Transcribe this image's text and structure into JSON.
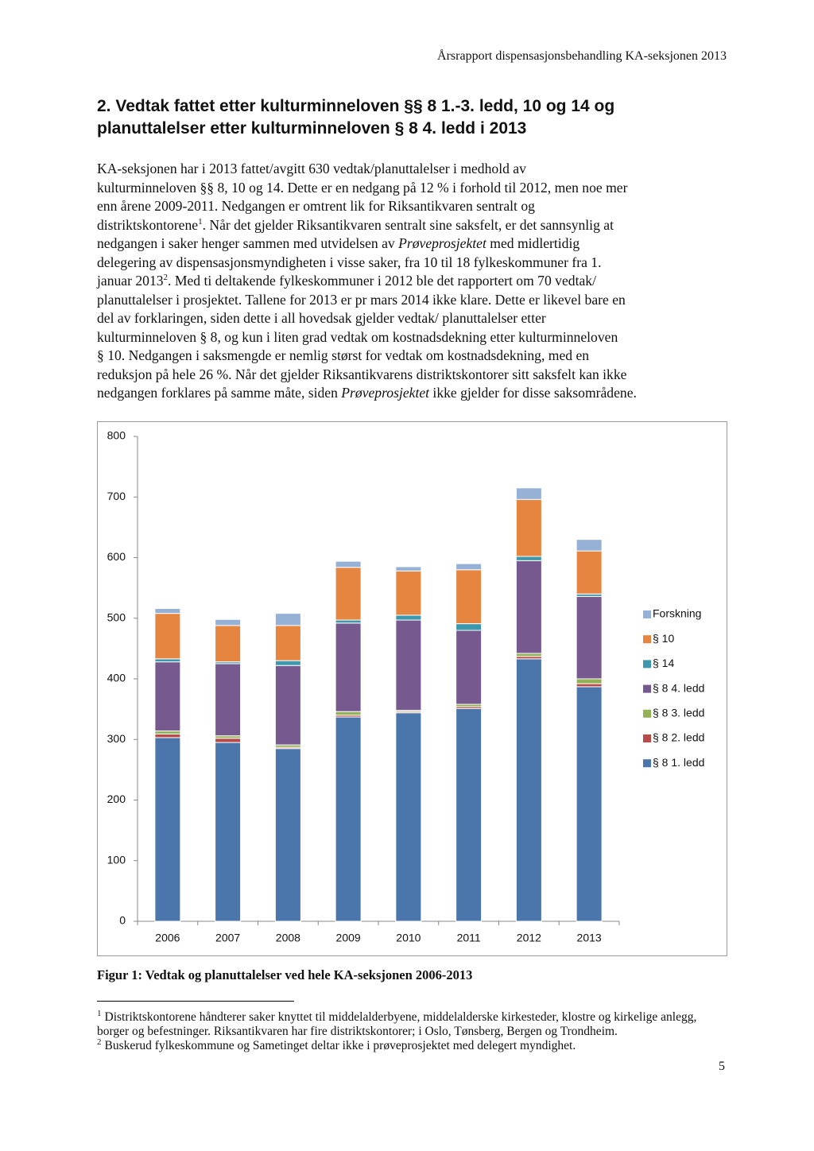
{
  "header": "Årsrapport dispensasjonsbehandling KA-seksjonen 2013",
  "heading": [
    "2. Vedtak fattet etter kulturminneloven §§ 8 1.-3. ledd, 10 og 14 og",
    "planuttalelser etter kulturminneloven § 8 4. ledd i 2013"
  ],
  "body": {
    "lines": [
      [
        {
          "text": "KA-seksjonen har i 2013 fattet/avgitt 630 vedtak/planuttalelser i medhold av"
        }
      ],
      [
        {
          "text": "kulturminneloven §§ 8, 10 og 14. Dette er en nedgang på 12 % i forhold til 2012, men noe mer"
        }
      ],
      [
        {
          "text": "enn årene 2009-2011. Nedgangen er omtrent lik for Riksantikvaren sentralt og"
        }
      ],
      [
        {
          "text": "distriktskontorene"
        },
        {
          "text": "1",
          "style": "sup"
        },
        {
          "text": ". Når det gjelder Riksantikvaren sentralt sine saksfelt, er det sannsynlig at"
        }
      ],
      [
        {
          "text": "nedgangen i saker henger sammen med utvidelsen av "
        },
        {
          "text": "Prøveprosjektet",
          "style": "italic"
        },
        {
          "text": " med midlertidig"
        }
      ],
      [
        {
          "text": "delegering av dispensasjonsmyndigheten i visse saker, fra 10 til 18 fylkeskommuner fra 1."
        }
      ],
      [
        {
          "text": "januar 2013"
        },
        {
          "text": "2",
          "style": "sup"
        },
        {
          "text": ". Med ti deltakende fylkeskommuner i 2012 ble det rapportert om 70 vedtak/"
        }
      ],
      [
        {
          "text": "planuttalelser i prosjektet. Tallene for 2013 er pr mars 2014 ikke klare. Dette er likevel bare en"
        }
      ],
      [
        {
          "text": "del av forklaringen, siden dette i all hovedsak gjelder vedtak/ planuttalelser etter"
        }
      ],
      [
        {
          "text": "kulturminneloven § 8, og kun i liten grad vedtak om kostnadsdekning etter kulturminneloven"
        }
      ],
      [
        {
          "text": "§ 10. Nedgangen i saksmengde er nemlig størst for vedtak om kostnadsdekning, med en"
        }
      ],
      [
        {
          "text": "reduksjon på hele 26 %. Når det gjelder Riksantikvarens distriktskontorer sitt saksfelt kan ikke"
        }
      ],
      [
        {
          "text": "nedgangen forklares på samme måte, siden "
        },
        {
          "text": "Prøveprosjektet",
          "style": "italic"
        },
        {
          "text": " ikke gjelder for disse saksområdene."
        }
      ]
    ]
  },
  "chart_data": {
    "type": "stacked-bar",
    "categories": [
      "2006",
      "2007",
      "2008",
      "2009",
      "2010",
      "2011",
      "2012",
      "2013"
    ],
    "series": [
      {
        "name": "§ 8 1. ledd",
        "color": "#4a76ab",
        "values": [
          303,
          295,
          285,
          337,
          344,
          351,
          433,
          387
        ]
      },
      {
        "name": "§ 8 2. ledd",
        "color": "#b84a47",
        "values": [
          6,
          7,
          2,
          3,
          2,
          3,
          4,
          5
        ]
      },
      {
        "name": "§ 8 3. ledd",
        "color": "#93b257",
        "values": [
          5,
          4,
          4,
          6,
          2,
          4,
          5,
          8
        ]
      },
      {
        "name": "§ 8 4. ledd",
        "color": "#76598f",
        "values": [
          114,
          119,
          131,
          146,
          149,
          122,
          153,
          136
        ]
      },
      {
        "name": "§ 14",
        "color": "#3e98ad",
        "values": [
          5,
          3,
          8,
          5,
          8,
          11,
          7,
          4
        ]
      },
      {
        "name": "§ 10",
        "color": "#e5853f",
        "values": [
          75,
          60,
          58,
          87,
          73,
          89,
          94,
          71
        ]
      },
      {
        "name": "Forskning",
        "color": "#95b1d6",
        "values": [
          8,
          10,
          20,
          10,
          7,
          10,
          19,
          19
        ]
      }
    ],
    "ylim": [
      0,
      800
    ],
    "yticks": [
      0,
      100,
      200,
      300,
      400,
      500,
      600,
      700,
      800
    ],
    "grid": false,
    "legend": "right"
  },
  "caption": "Figur 1: Vedtak og planuttalelser ved hele KA-seksjonen 2006-2013",
  "footnotes": [
    {
      "mark": "1",
      "text": "Distriktskontorene håndterer saker knyttet til middelalderbyene, middelalderske kirkesteder, klostre og kirkelige anlegg, borger og befestninger. Riksantikvaren har fire distriktskontorer; i Oslo, Tønsberg, Bergen og Trondheim."
    },
    {
      "mark": "2",
      "text": "Buskerud fylkeskommune og Sametinget deltar ikke i prøveprosjektet med delegert myndighet."
    }
  ],
  "page_number": "5"
}
